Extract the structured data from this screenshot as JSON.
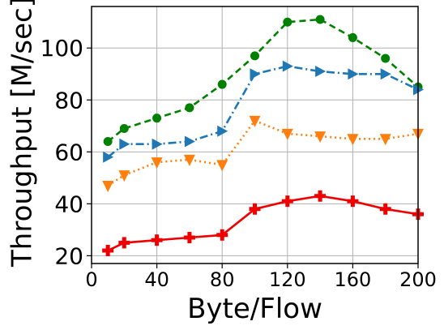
{
  "chart_data": {
    "type": "line",
    "xlabel": "Byte/Flow",
    "ylabel": "Throughput [M/sec]",
    "xlim": [
      0,
      200
    ],
    "ylim": [
      17,
      116
    ],
    "xticks": [
      0,
      40,
      80,
      120,
      160,
      200
    ],
    "xtick_labels": [
      "0",
      "40",
      "80",
      "120",
      "160",
      "200"
    ],
    "yticks": [
      20,
      40,
      60,
      80,
      100
    ],
    "ytick_labels": [
      "20",
      "40",
      "60",
      "80",
      "100"
    ],
    "grid": true,
    "legend": false,
    "x": [
      10,
      20,
      40,
      60,
      80,
      100,
      120,
      140,
      160,
      180,
      200
    ],
    "series": [
      {
        "color": "#008000",
        "linestyle": "dashed",
        "marker": "circle",
        "values": [
          64,
          69,
          73,
          77,
          86,
          97,
          110,
          111,
          104,
          96,
          85
        ]
      },
      {
        "color": "#1f77b4",
        "linestyle": "dashdot",
        "marker": "triangle-right",
        "values": [
          58,
          63,
          63,
          64,
          68,
          90,
          93,
          91,
          90,
          90,
          84
        ]
      },
      {
        "color": "#ff7f0e",
        "linestyle": "dotted",
        "marker": "triangle-down",
        "values": [
          47,
          51,
          56,
          57,
          55,
          72,
          67,
          66,
          65,
          65,
          67
        ]
      },
      {
        "color": "#ee0000",
        "linestyle": "solid",
        "marker": "plus",
        "values": [
          22,
          25,
          26,
          27,
          28,
          38,
          41,
          43,
          41,
          38,
          36
        ]
      }
    ]
  }
}
